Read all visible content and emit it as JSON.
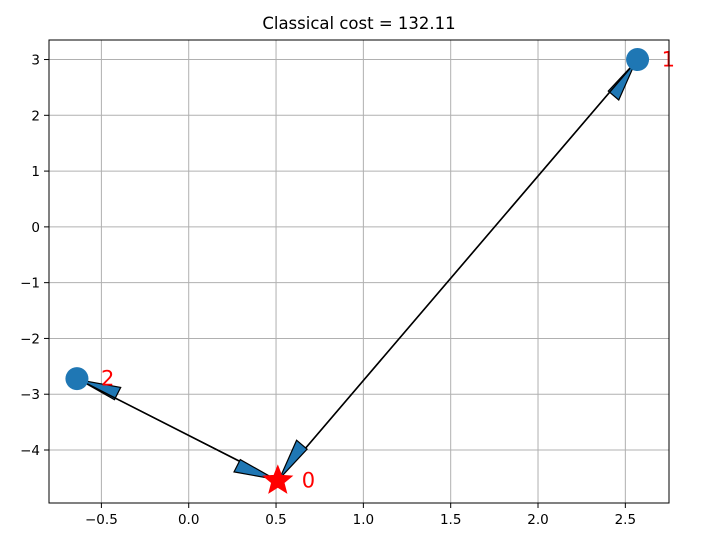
{
  "chart_data": {
    "type": "scatter",
    "title": "Classical cost = 132.11",
    "xlabel": "",
    "ylabel": "",
    "xlim": [
      -0.8,
      2.75
    ],
    "ylim": [
      -4.95,
      3.35
    ],
    "grid": true,
    "xticks": [
      -0.5,
      0.0,
      0.5,
      1.0,
      1.5,
      2.0,
      2.5
    ],
    "xtick_labels": [
      "−0.5",
      "0.0",
      "0.5",
      "1.0",
      "1.5",
      "2.0",
      "2.5"
    ],
    "yticks": [
      3,
      2,
      1,
      0,
      -1,
      -2,
      -3,
      -4
    ],
    "ytick_labels": [
      "3",
      "2",
      "1",
      "0",
      "−1",
      "−2",
      "−3",
      "−4"
    ],
    "nodes": [
      {
        "label": "0",
        "x": 0.51,
        "y": -4.55,
        "marker": "star",
        "color": "#ff0000"
      },
      {
        "label": "1",
        "x": 2.57,
        "y": 3.0,
        "marker": "circle",
        "color": "#1f77b4"
      },
      {
        "label": "2",
        "x": -0.64,
        "y": -2.72,
        "marker": "circle",
        "color": "#1f77b4"
      }
    ],
    "edges": [
      {
        "from": "0",
        "to": "1"
      },
      {
        "from": "1",
        "to": "0"
      },
      {
        "from": "0",
        "to": "2"
      },
      {
        "from": "2",
        "to": "0"
      }
    ],
    "colors": {
      "node": "#1f77b4",
      "depot": "#ff0000",
      "label": "#ff0000",
      "arrowhead": "#1f77b4",
      "edge": "#000000",
      "grid": "#b0b0b0"
    }
  }
}
